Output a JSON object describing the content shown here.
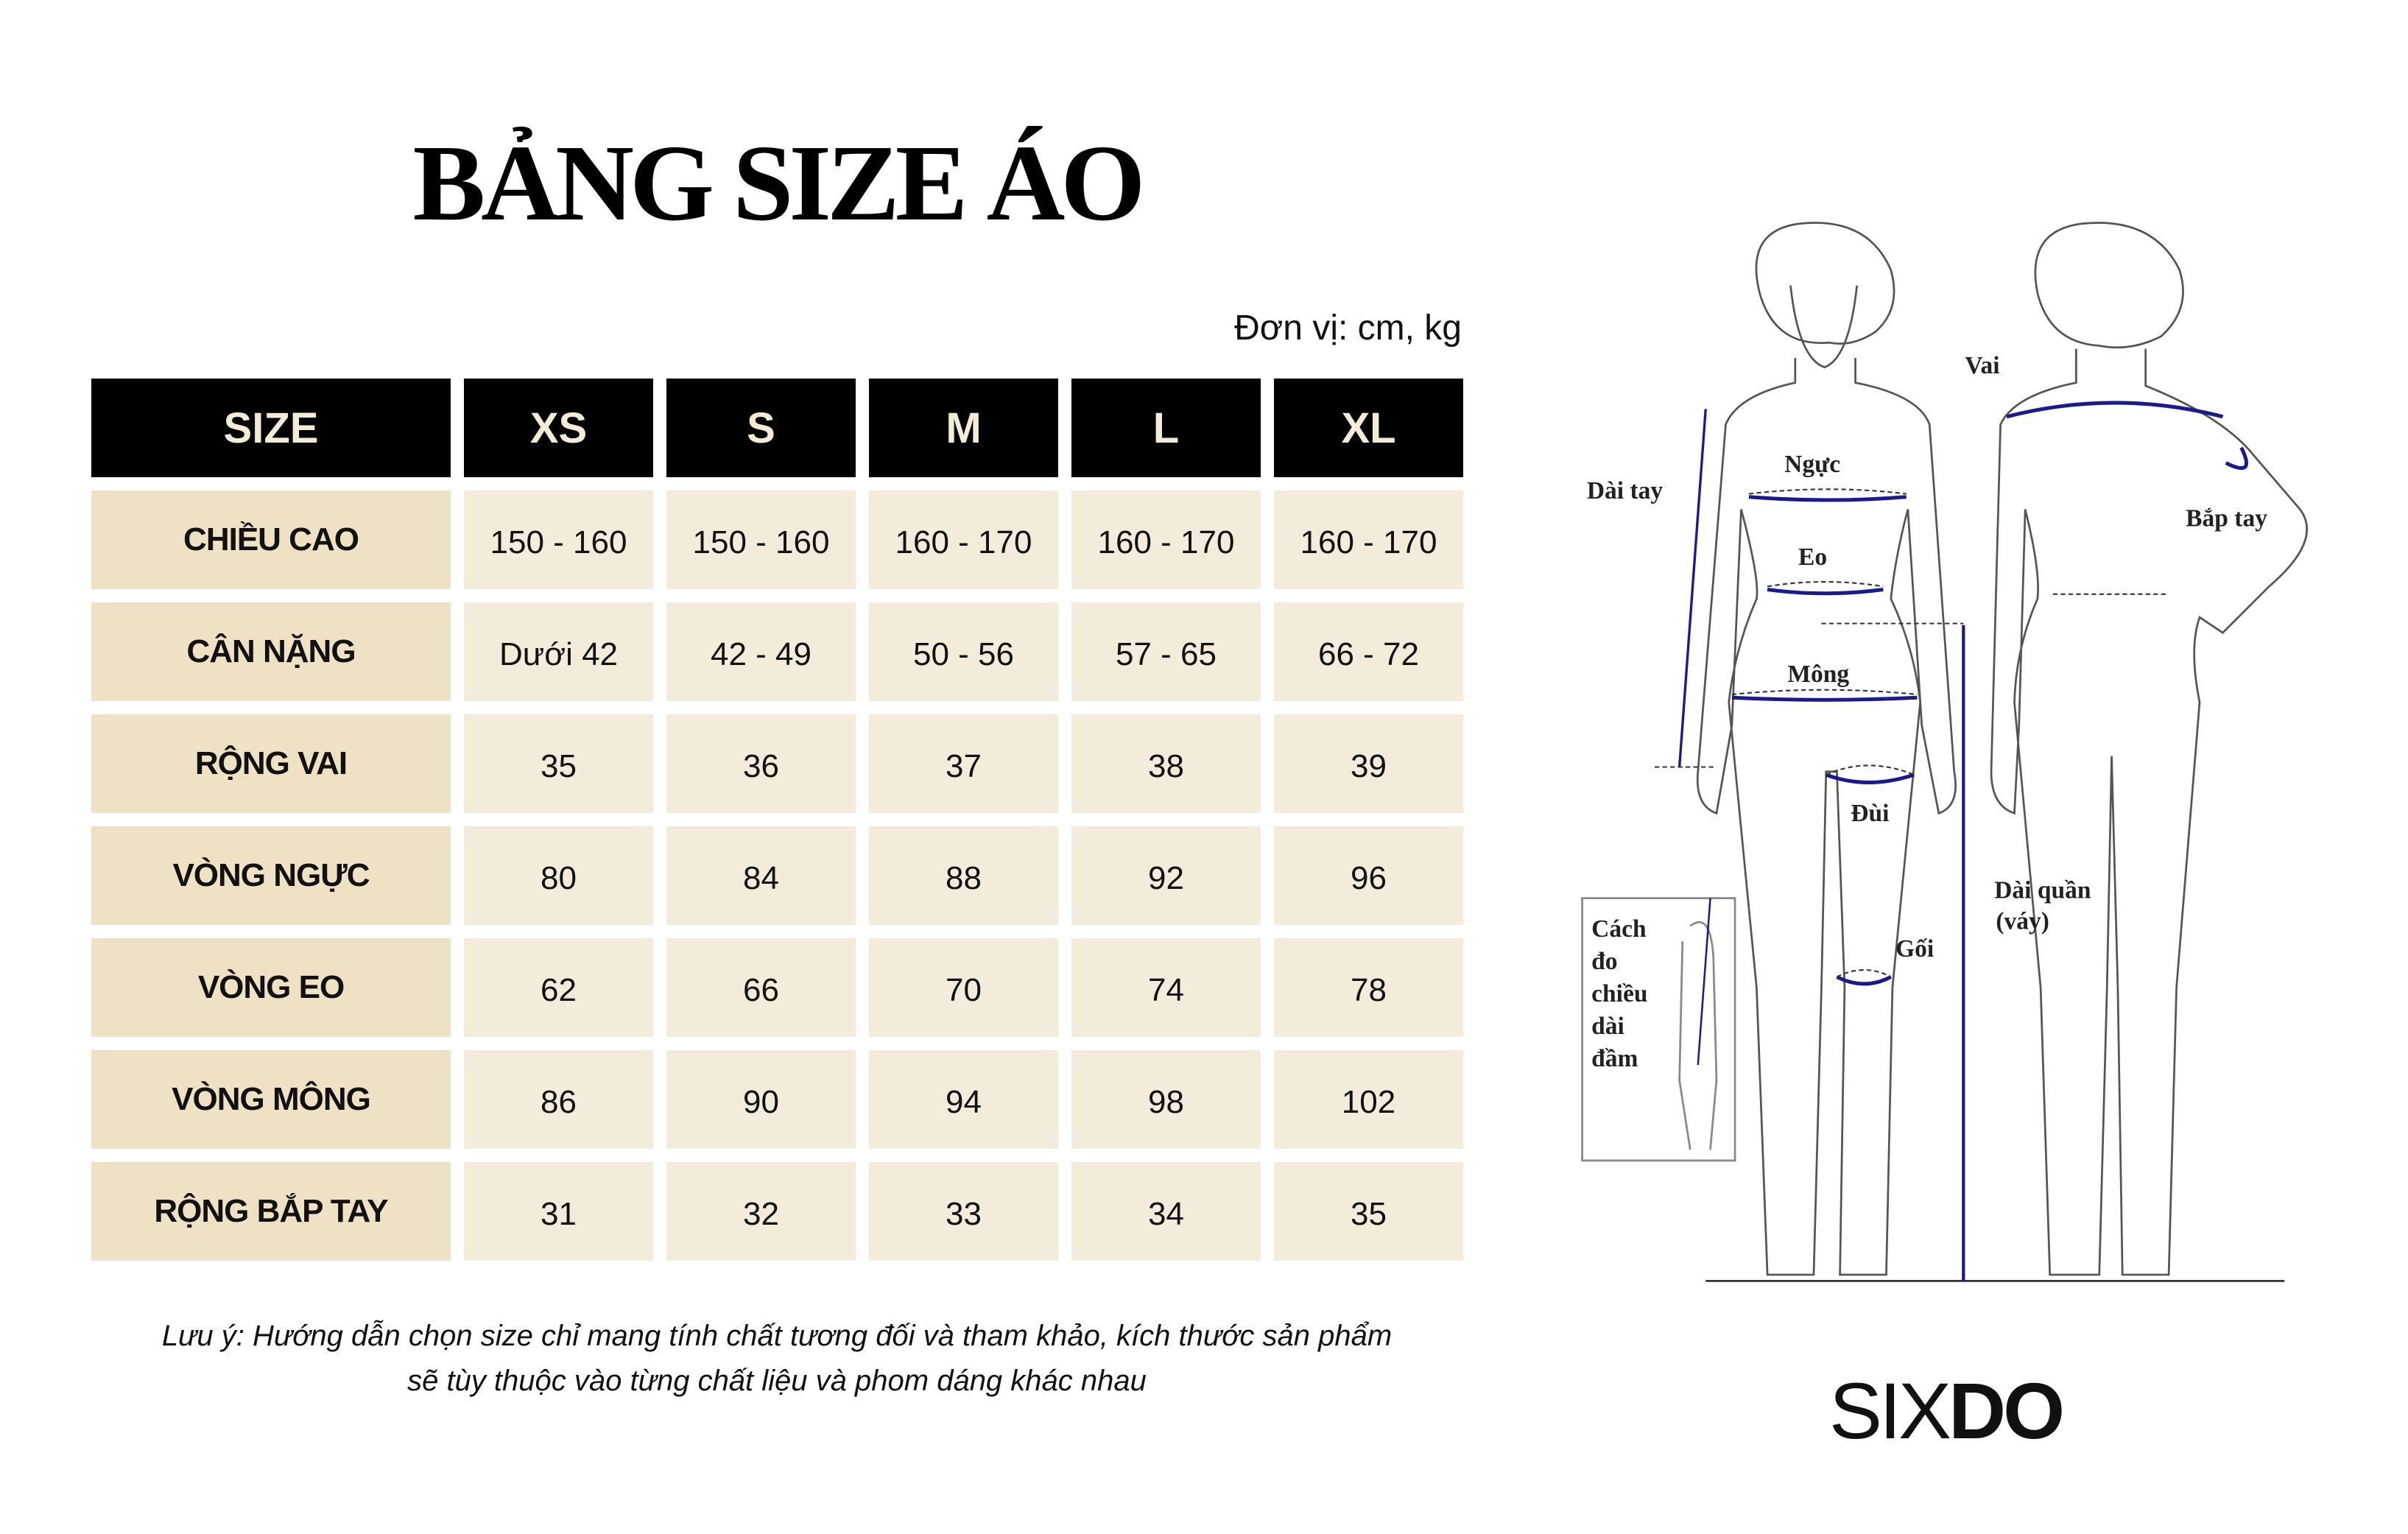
{
  "title": "BẢNG SIZE ÁO",
  "unit": "Đơn vị: cm, kg",
  "table": {
    "headers": [
      "SIZE",
      "XS",
      "S",
      "M",
      "L",
      "XL"
    ],
    "rows": [
      {
        "label": "CHIỀU CAO",
        "values": [
          "150 - 160",
          "150 - 160",
          "160 - 170",
          "160 - 170",
          "160 - 170"
        ]
      },
      {
        "label": "CÂN NẶNG",
        "values": [
          "Dưới 42",
          "42 - 49",
          "50 - 56",
          "57 - 65",
          "66 - 72"
        ]
      },
      {
        "label": "RỘNG VAI",
        "values": [
          "35",
          "36",
          "37",
          "38",
          "39"
        ]
      },
      {
        "label": "VÒNG NGỰC",
        "values": [
          "80",
          "84",
          "88",
          "92",
          "96"
        ]
      },
      {
        "label": "VÒNG EO",
        "values": [
          "62",
          "66",
          "70",
          "74",
          "78"
        ]
      },
      {
        "label": "VÒNG MÔNG",
        "values": [
          "86",
          "90",
          "94",
          "98",
          "102"
        ]
      },
      {
        "label": "RỘNG BẮP TAY",
        "values": [
          "31",
          "32",
          "33",
          "34",
          "35"
        ]
      }
    ]
  },
  "note": {
    "line1": "Lưu ý: Hướng dẫn chọn size chỉ mang tính chất tương đối và tham khảo, kích thước sản phẩm",
    "line2": "sẽ tùy thuộc vào từng chất liệu và phom dáng khác nhau"
  },
  "diagram": {
    "labels": {
      "chest": "Ngực",
      "waist": "Eo",
      "hip": "Mông",
      "thigh": "Đùi",
      "knee": "Gối",
      "arm_length": "Dài tay",
      "shoulder": "Vai",
      "bicep": "Bắp tay",
      "pants_length": "Dài quần",
      "skirt": "(váy)"
    },
    "inset": [
      "Cách",
      "đo",
      "chiều",
      "dài",
      "đầm"
    ],
    "measure_color": "#1a1a8c"
  },
  "logo": {
    "light": "SIX",
    "bold": "DO"
  }
}
